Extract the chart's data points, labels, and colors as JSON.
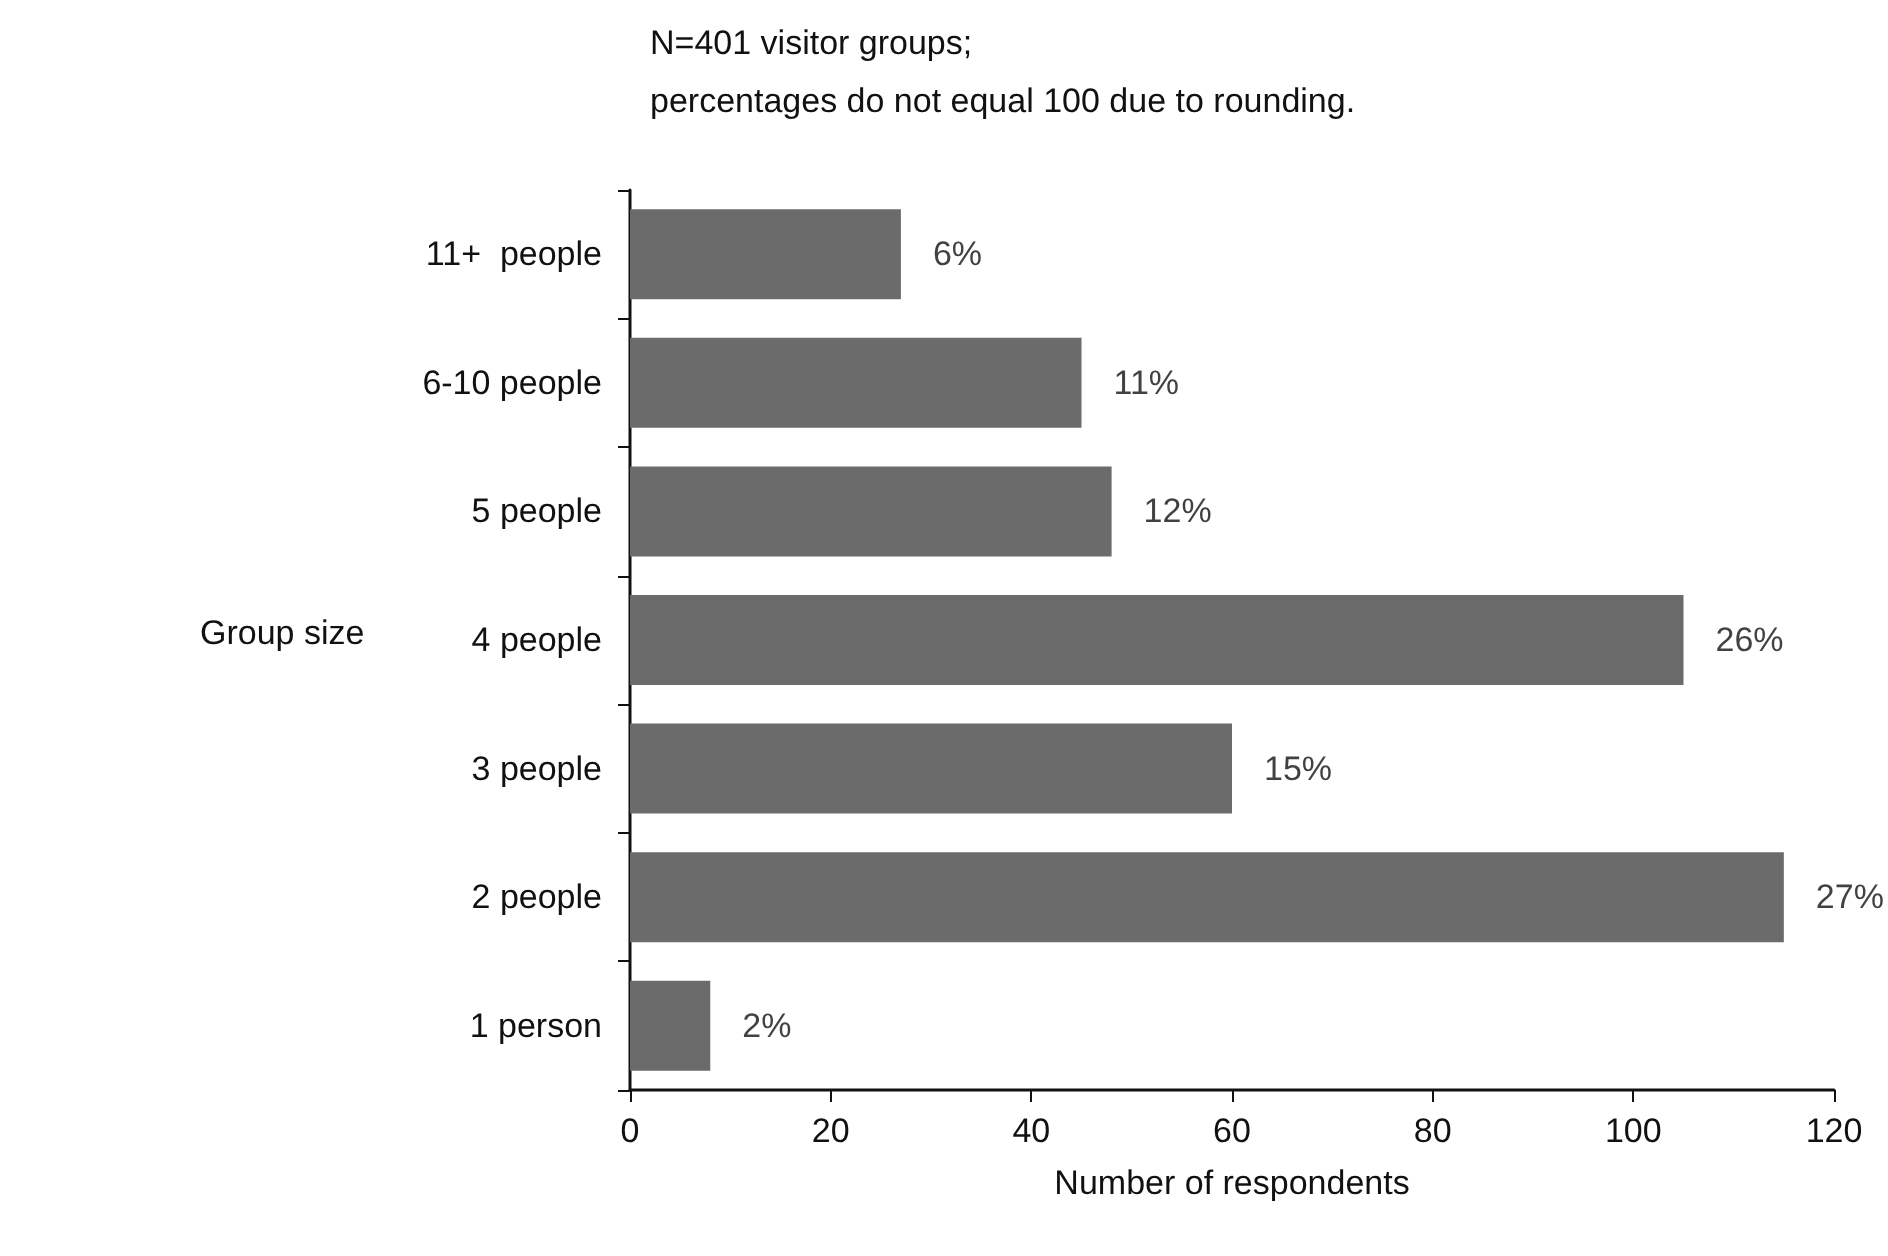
{
  "chart_data": {
    "type": "bar",
    "orientation": "horizontal",
    "title": "N=401 visitor groups;",
    "subtitle": "percentages do not equal 100 due to rounding.",
    "xlabel": "Number of respondents",
    "ylabel": "Group size",
    "categories": [
      "11+  people",
      "6-10 people",
      "5 people",
      "4 people",
      "3 people",
      "2 people",
      "1 person"
    ],
    "values": [
      27,
      45,
      48,
      105,
      60,
      115,
      8
    ],
    "annotations": [
      {
        "text": "6%",
        "x": 27,
        "y": "11+  people"
      },
      {
        "text": "11%",
        "x": 45,
        "y": "6-10 people"
      },
      {
        "text": "12%",
        "x": 48,
        "y": "5 people"
      },
      {
        "text": "26%",
        "x": 105,
        "y": "4 people"
      },
      {
        "text": "15%",
        "x": 60,
        "y": "3 people"
      },
      {
        "text": "27%",
        "x": 115,
        "y": "2 people"
      },
      {
        "text": "2%",
        "x": 8,
        "y": "1 person"
      }
    ],
    "color": "#6b6b6b",
    "xlim": [
      0,
      120
    ],
    "xticks": [
      0,
      20,
      40,
      60,
      80,
      100,
      120
    ],
    "grid": false
  }
}
